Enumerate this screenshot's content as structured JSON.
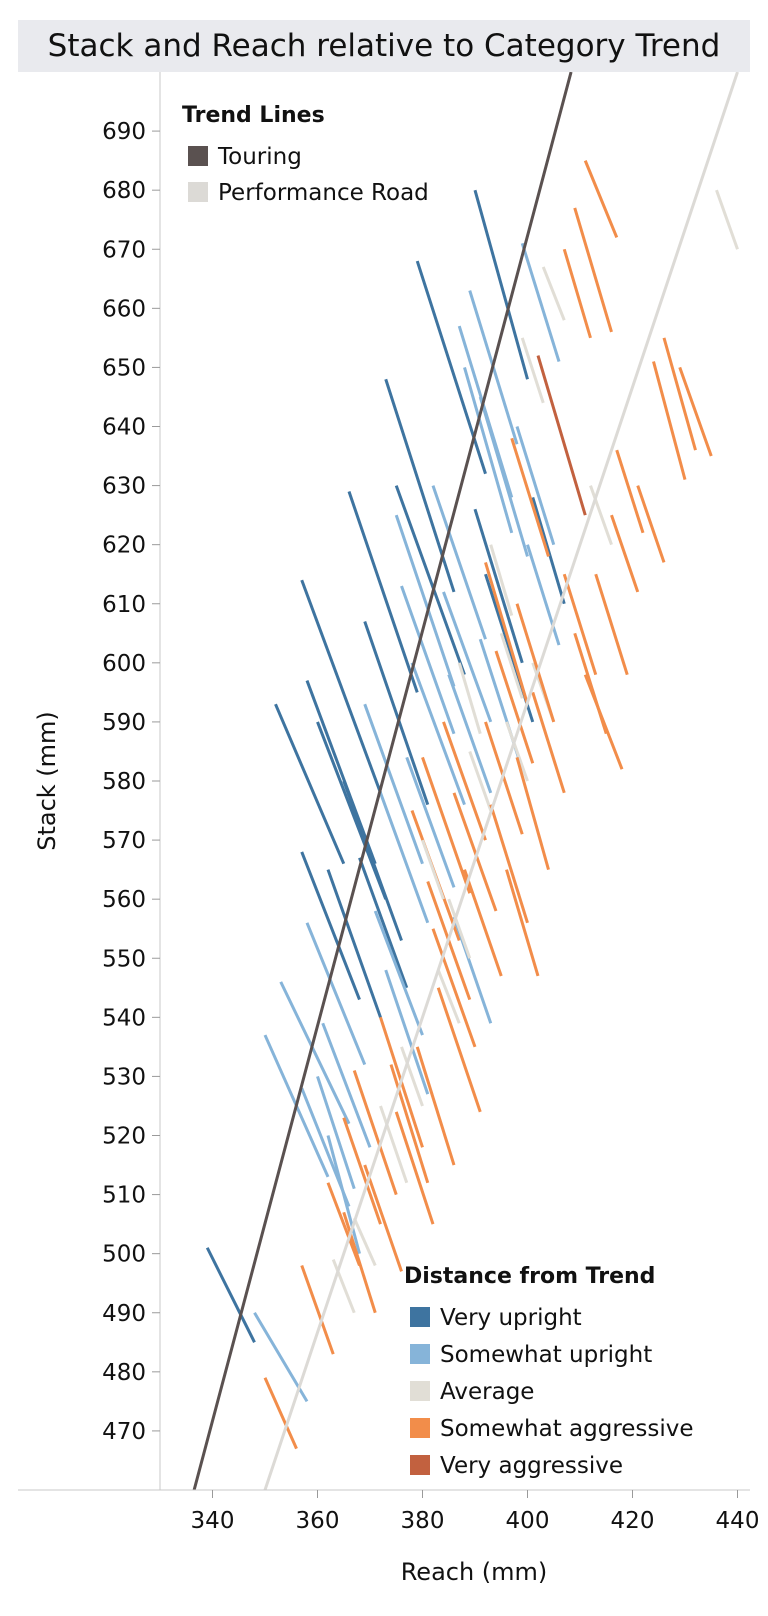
{
  "chart_data": {
    "type": "scatter",
    "title": "Stack and Reach relative to Category Trend",
    "xlabel": "Reach (mm)",
    "ylabel": "Stack (mm)",
    "xlim": [
      330,
      442
    ],
    "ylim": [
      460,
      700
    ],
    "x_ticks": [
      340,
      360,
      380,
      400,
      420,
      440
    ],
    "y_ticks": [
      470,
      480,
      490,
      500,
      510,
      520,
      530,
      540,
      550,
      560,
      570,
      580,
      590,
      600,
      610,
      620,
      630,
      640,
      650,
      660,
      670,
      680,
      690
    ],
    "grid": false,
    "colors": {
      "touring": "#5a5150",
      "performance_road": "#dcdad6",
      "very_upright": "#3e74a0",
      "somewhat_upright": "#86b4d9",
      "average": "#e1ded6",
      "somewhat_aggressive": "#f28d4a",
      "very_aggressive": "#c2613f"
    },
    "trend_legend": {
      "title": "Trend Lines",
      "entries": [
        {
          "key": "touring",
          "label": "Touring"
        },
        {
          "key": "performance_road",
          "label": "Performance Road"
        }
      ]
    },
    "distance_legend": {
      "title": "Distance from Trend",
      "entries": [
        {
          "key": "very_upright",
          "label": "Very upright"
        },
        {
          "key": "somewhat_upright",
          "label": "Somewhat upright"
        },
        {
          "key": "average",
          "label": "Average"
        },
        {
          "key": "somewhat_aggressive",
          "label": "Somewhat aggressive"
        },
        {
          "key": "very_aggressive",
          "label": "Very aggressive"
        }
      ]
    },
    "trend_lines": [
      {
        "key": "touring",
        "points": [
          [
            336.5,
            460
          ],
          [
            408.3,
            700
          ]
        ]
      },
      {
        "key": "performance_road",
        "points": [
          [
            350,
            460
          ],
          [
            440,
            700
          ]
        ]
      }
    ],
    "segments": [
      {
        "c": "very_upright",
        "x1": 339,
        "y1": 501,
        "x2": 348,
        "y2": 485
      },
      {
        "c": "somewhat_upright",
        "x1": 348,
        "y1": 490,
        "x2": 358,
        "y2": 475
      },
      {
        "c": "somewhat_aggressive",
        "x1": 350,
        "y1": 479,
        "x2": 356,
        "y2": 467
      },
      {
        "c": "somewhat_aggressive",
        "x1": 357,
        "y1": 498,
        "x2": 363,
        "y2": 483
      },
      {
        "c": "somewhat_upright",
        "x1": 350,
        "y1": 537,
        "x2": 362,
        "y2": 513
      },
      {
        "c": "somewhat_upright",
        "x1": 353,
        "y1": 546,
        "x2": 366,
        "y2": 522
      },
      {
        "c": "somewhat_upright",
        "x1": 357,
        "y1": 528,
        "x2": 366,
        "y2": 508
      },
      {
        "c": "somewhat_upright",
        "x1": 358,
        "y1": 556,
        "x2": 369,
        "y2": 532
      },
      {
        "c": "very_upright",
        "x1": 352,
        "y1": 593,
        "x2": 365,
        "y2": 566
      },
      {
        "c": "very_upright",
        "x1": 357,
        "y1": 614,
        "x2": 372,
        "y2": 578
      },
      {
        "c": "very_upright",
        "x1": 358,
        "y1": 597,
        "x2": 371,
        "y2": 566
      },
      {
        "c": "very_upright",
        "x1": 360,
        "y1": 590,
        "x2": 373,
        "y2": 560
      },
      {
        "c": "very_upright",
        "x1": 357,
        "y1": 568,
        "x2": 368,
        "y2": 543
      },
      {
        "c": "very_upright",
        "x1": 362,
        "y1": 565,
        "x2": 372,
        "y2": 540
      },
      {
        "c": "somewhat_upright",
        "x1": 361,
        "y1": 539,
        "x2": 370,
        "y2": 518
      },
      {
        "c": "somewhat_upright",
        "x1": 360,
        "y1": 530,
        "x2": 367,
        "y2": 511
      },
      {
        "c": "somewhat_upright",
        "x1": 362,
        "y1": 520,
        "x2": 368,
        "y2": 500
      },
      {
        "c": "somewhat_aggressive",
        "x1": 362,
        "y1": 512,
        "x2": 368,
        "y2": 498
      },
      {
        "c": "somewhat_aggressive",
        "x1": 365,
        "y1": 523,
        "x2": 372,
        "y2": 505
      },
      {
        "c": "somewhat_aggressive",
        "x1": 367,
        "y1": 531,
        "x2": 375,
        "y2": 510
      },
      {
        "c": "somewhat_aggressive",
        "x1": 369,
        "y1": 515,
        "x2": 376,
        "y2": 497
      },
      {
        "c": "somewhat_aggressive",
        "x1": 365,
        "y1": 507,
        "x2": 371,
        "y2": 490
      },
      {
        "c": "average",
        "x1": 363,
        "y1": 499,
        "x2": 367,
        "y2": 490
      },
      {
        "c": "average",
        "x1": 367,
        "y1": 506,
        "x2": 371,
        "y2": 498
      },
      {
        "c": "very_upright",
        "x1": 366,
        "y1": 629,
        "x2": 379,
        "y2": 595
      },
      {
        "c": "very_upright",
        "x1": 369,
        "y1": 607,
        "x2": 381,
        "y2": 576
      },
      {
        "c": "very_upright",
        "x1": 365,
        "y1": 580,
        "x2": 376,
        "y2": 553
      },
      {
        "c": "very_upright",
        "x1": 368,
        "y1": 567,
        "x2": 377,
        "y2": 545
      },
      {
        "c": "somewhat_upright",
        "x1": 369,
        "y1": 593,
        "x2": 380,
        "y2": 566
      },
      {
        "c": "somewhat_upright",
        "x1": 372,
        "y1": 578,
        "x2": 381,
        "y2": 556
      },
      {
        "c": "somewhat_upright",
        "x1": 371,
        "y1": 558,
        "x2": 380,
        "y2": 537
      },
      {
        "c": "somewhat_upright",
        "x1": 373,
        "y1": 548,
        "x2": 381,
        "y2": 527
      },
      {
        "c": "somewhat_aggressive",
        "x1": 372,
        "y1": 540,
        "x2": 380,
        "y2": 518
      },
      {
        "c": "somewhat_aggressive",
        "x1": 374,
        "y1": 532,
        "x2": 381,
        "y2": 512
      },
      {
        "c": "somewhat_aggressive",
        "x1": 375,
        "y1": 524,
        "x2": 382,
        "y2": 505
      },
      {
        "c": "average",
        "x1": 372,
        "y1": 525,
        "x2": 377,
        "y2": 512
      },
      {
        "c": "average",
        "x1": 376,
        "y1": 535,
        "x2": 380,
        "y2": 525
      },
      {
        "c": "very_upright",
        "x1": 373,
        "y1": 648,
        "x2": 386,
        "y2": 612
      },
      {
        "c": "very_upright",
        "x1": 379,
        "y1": 668,
        "x2": 392,
        "y2": 632
      },
      {
        "c": "very_upright",
        "x1": 375,
        "y1": 630,
        "x2": 388,
        "y2": 598
      },
      {
        "c": "somewhat_upright",
        "x1": 375,
        "y1": 625,
        "x2": 386,
        "y2": 596
      },
      {
        "c": "somewhat_upright",
        "x1": 376,
        "y1": 613,
        "x2": 386,
        "y2": 588
      },
      {
        "c": "somewhat_upright",
        "x1": 378,
        "y1": 600,
        "x2": 388,
        "y2": 576
      },
      {
        "c": "somewhat_upright",
        "x1": 377,
        "y1": 584,
        "x2": 386,
        "y2": 562
      },
      {
        "c": "somewhat_aggressive",
        "x1": 378,
        "y1": 575,
        "x2": 387,
        "y2": 553
      },
      {
        "c": "somewhat_aggressive",
        "x1": 380,
        "y1": 584,
        "x2": 389,
        "y2": 561
      },
      {
        "c": "somewhat_aggressive",
        "x1": 381,
        "y1": 563,
        "x2": 389,
        "y2": 543
      },
      {
        "c": "somewhat_aggressive",
        "x1": 382,
        "y1": 555,
        "x2": 390,
        "y2": 535
      },
      {
        "c": "somewhat_aggressive",
        "x1": 383,
        "y1": 545,
        "x2": 391,
        "y2": 524
      },
      {
        "c": "somewhat_aggressive",
        "x1": 379,
        "y1": 535,
        "x2": 386,
        "y2": 515
      },
      {
        "c": "average",
        "x1": 380,
        "y1": 570,
        "x2": 384,
        "y2": 560
      },
      {
        "c": "average",
        "x1": 383,
        "y1": 548,
        "x2": 387,
        "y2": 539
      },
      {
        "c": "somewhat_upright",
        "x1": 382,
        "y1": 630,
        "x2": 392,
        "y2": 604
      },
      {
        "c": "somewhat_upright",
        "x1": 384,
        "y1": 612,
        "x2": 393,
        "y2": 590
      },
      {
        "c": "somewhat_upright",
        "x1": 385,
        "y1": 598,
        "x2": 393,
        "y2": 578
      },
      {
        "c": "somewhat_upright",
        "x1": 386,
        "y1": 557,
        "x2": 393,
        "y2": 539
      },
      {
        "c": "somewhat_aggressive",
        "x1": 384,
        "y1": 590,
        "x2": 392,
        "y2": 570
      },
      {
        "c": "somewhat_aggressive",
        "x1": 386,
        "y1": 578,
        "x2": 394,
        "y2": 558
      },
      {
        "c": "somewhat_aggressive",
        "x1": 388,
        "y1": 565,
        "x2": 395,
        "y2": 547
      },
      {
        "c": "average",
        "x1": 387,
        "y1": 600,
        "x2": 391,
        "y2": 588
      },
      {
        "c": "average",
        "x1": 389,
        "y1": 585,
        "x2": 393,
        "y2": 575
      },
      {
        "c": "average",
        "x1": 385,
        "y1": 560,
        "x2": 389,
        "y2": 550
      },
      {
        "c": "very_upright",
        "x1": 390,
        "y1": 680,
        "x2": 400,
        "y2": 648
      },
      {
        "c": "somewhat_upright",
        "x1": 387,
        "y1": 657,
        "x2": 397,
        "y2": 628
      },
      {
        "c": "somewhat_upright",
        "x1": 389,
        "y1": 663,
        "x2": 398,
        "y2": 637
      },
      {
        "c": "somewhat_upright",
        "x1": 388,
        "y1": 650,
        "x2": 397,
        "y2": 622
      },
      {
        "c": "somewhat_upright",
        "x1": 391,
        "y1": 645,
        "x2": 400,
        "y2": 618
      },
      {
        "c": "very_upright",
        "x1": 390,
        "y1": 626,
        "x2": 399,
        "y2": 600
      },
      {
        "c": "very_upright",
        "x1": 392,
        "y1": 615,
        "x2": 401,
        "y2": 590
      },
      {
        "c": "somewhat_upright",
        "x1": 391,
        "y1": 604,
        "x2": 399,
        "y2": 582
      },
      {
        "c": "somewhat_aggressive",
        "x1": 392,
        "y1": 617,
        "x2": 400,
        "y2": 593
      },
      {
        "c": "somewhat_aggressive",
        "x1": 394,
        "y1": 602,
        "x2": 401,
        "y2": 583
      },
      {
        "c": "somewhat_aggressive",
        "x1": 392,
        "y1": 590,
        "x2": 399,
        "y2": 571
      },
      {
        "c": "somewhat_aggressive",
        "x1": 393,
        "y1": 576,
        "x2": 400,
        "y2": 556
      },
      {
        "c": "average",
        "x1": 393,
        "y1": 620,
        "x2": 397,
        "y2": 608
      },
      {
        "c": "average",
        "x1": 395,
        "y1": 605,
        "x2": 399,
        "y2": 594
      },
      {
        "c": "average",
        "x1": 396,
        "y1": 590,
        "x2": 400,
        "y2": 580
      },
      {
        "c": "somewhat_upright",
        "x1": 399,
        "y1": 671,
        "x2": 406,
        "y2": 651
      },
      {
        "c": "somewhat_upright",
        "x1": 398,
        "y1": 640,
        "x2": 405,
        "y2": 620
      },
      {
        "c": "somewhat_upright",
        "x1": 400,
        "y1": 620,
        "x2": 406,
        "y2": 603
      },
      {
        "c": "very_upright",
        "x1": 401,
        "y1": 628,
        "x2": 407,
        "y2": 610
      },
      {
        "c": "average",
        "x1": 403,
        "y1": 667,
        "x2": 407,
        "y2": 658
      },
      {
        "c": "average",
        "x1": 399,
        "y1": 655,
        "x2": 403,
        "y2": 644
      },
      {
        "c": "average",
        "x1": 401,
        "y1": 600,
        "x2": 405,
        "y2": 590
      },
      {
        "c": "somewhat_aggressive",
        "x1": 397,
        "y1": 638,
        "x2": 404,
        "y2": 618
      },
      {
        "c": "somewhat_aggressive",
        "x1": 398,
        "y1": 610,
        "x2": 405,
        "y2": 590
      },
      {
        "c": "somewhat_aggressive",
        "x1": 398,
        "y1": 584,
        "x2": 404,
        "y2": 565
      },
      {
        "c": "somewhat_aggressive",
        "x1": 396,
        "y1": 565,
        "x2": 402,
        "y2": 547
      },
      {
        "c": "somewhat_aggressive",
        "x1": 401,
        "y1": 595,
        "x2": 407,
        "y2": 578
      },
      {
        "c": "very_aggressive",
        "x1": 402,
        "y1": 652,
        "x2": 411,
        "y2": 625
      },
      {
        "c": "somewhat_aggressive",
        "x1": 407,
        "y1": 670,
        "x2": 412,
        "y2": 655
      },
      {
        "c": "somewhat_aggressive",
        "x1": 409,
        "y1": 677,
        "x2": 416,
        "y2": 656
      },
      {
        "c": "somewhat_aggressive",
        "x1": 411,
        "y1": 685,
        "x2": 417,
        "y2": 672
      },
      {
        "c": "somewhat_aggressive",
        "x1": 407,
        "y1": 615,
        "x2": 413,
        "y2": 598
      },
      {
        "c": "somewhat_aggressive",
        "x1": 409,
        "y1": 605,
        "x2": 415,
        "y2": 588
      },
      {
        "c": "somewhat_aggressive",
        "x1": 411,
        "y1": 598,
        "x2": 418,
        "y2": 582
      },
      {
        "c": "somewhat_aggressive",
        "x1": 413,
        "y1": 615,
        "x2": 419,
        "y2": 598
      },
      {
        "c": "somewhat_aggressive",
        "x1": 416,
        "y1": 625,
        "x2": 421,
        "y2": 612
      },
      {
        "c": "somewhat_aggressive",
        "x1": 417,
        "y1": 636,
        "x2": 422,
        "y2": 622
      },
      {
        "c": "somewhat_aggressive",
        "x1": 421,
        "y1": 630,
        "x2": 426,
        "y2": 617
      },
      {
        "c": "somewhat_aggressive",
        "x1": 424,
        "y1": 651,
        "x2": 430,
        "y2": 631
      },
      {
        "c": "somewhat_aggressive",
        "x1": 426,
        "y1": 655,
        "x2": 432,
        "y2": 636
      },
      {
        "c": "somewhat_aggressive",
        "x1": 429,
        "y1": 650,
        "x2": 435,
        "y2": 635
      },
      {
        "c": "average",
        "x1": 412,
        "y1": 630,
        "x2": 416,
        "y2": 620
      },
      {
        "c": "average",
        "x1": 436,
        "y1": 680,
        "x2": 440,
        "y2": 670
      }
    ]
  }
}
